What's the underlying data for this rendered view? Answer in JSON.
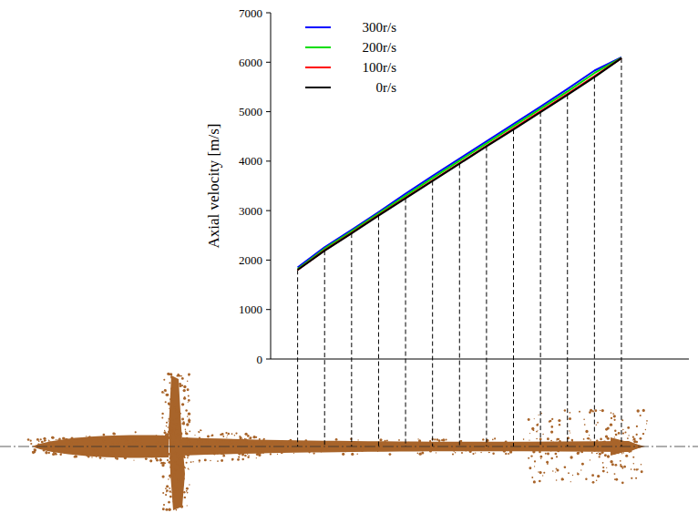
{
  "chart_data": {
    "type": "line",
    "ylabel": "Axial velocity [m/s]",
    "x": [
      0,
      1,
      2,
      3,
      4,
      5,
      6,
      7,
      8,
      9,
      10,
      11,
      12
    ],
    "series": [
      {
        "name": "300r/s",
        "color": "#0000ff",
        "values": [
          1850,
          2260,
          2610,
          2970,
          3340,
          3700,
          4050,
          4400,
          4750,
          5100,
          5460,
          5830,
          6100
        ]
      },
      {
        "name": "200r/s",
        "color": "#00dd00",
        "values": [
          1820,
          2230,
          2580,
          2940,
          3300,
          3660,
          4010,
          4360,
          4710,
          5060,
          5410,
          5780,
          6090
        ]
      },
      {
        "name": "100r/s",
        "color": "#ff0000",
        "values": [
          1800,
          2200,
          2550,
          2910,
          3260,
          3610,
          3960,
          4310,
          4660,
          5010,
          5360,
          5720,
          6080
        ]
      },
      {
        "name": "0r/s",
        "color": "#000000",
        "values": [
          1800,
          2190,
          2540,
          2900,
          3250,
          3600,
          3950,
          4300,
          4640,
          4990,
          5340,
          5700,
          6080
        ]
      }
    ],
    "xlim": [
      -1,
      14.5
    ],
    "ylim": [
      0,
      7000
    ],
    "yticks": [
      0,
      1000,
      2000,
      3000,
      4000,
      5000,
      6000,
      7000
    ],
    "tick_labels": "y",
    "legend": "upper left",
    "grid": false
  }
}
